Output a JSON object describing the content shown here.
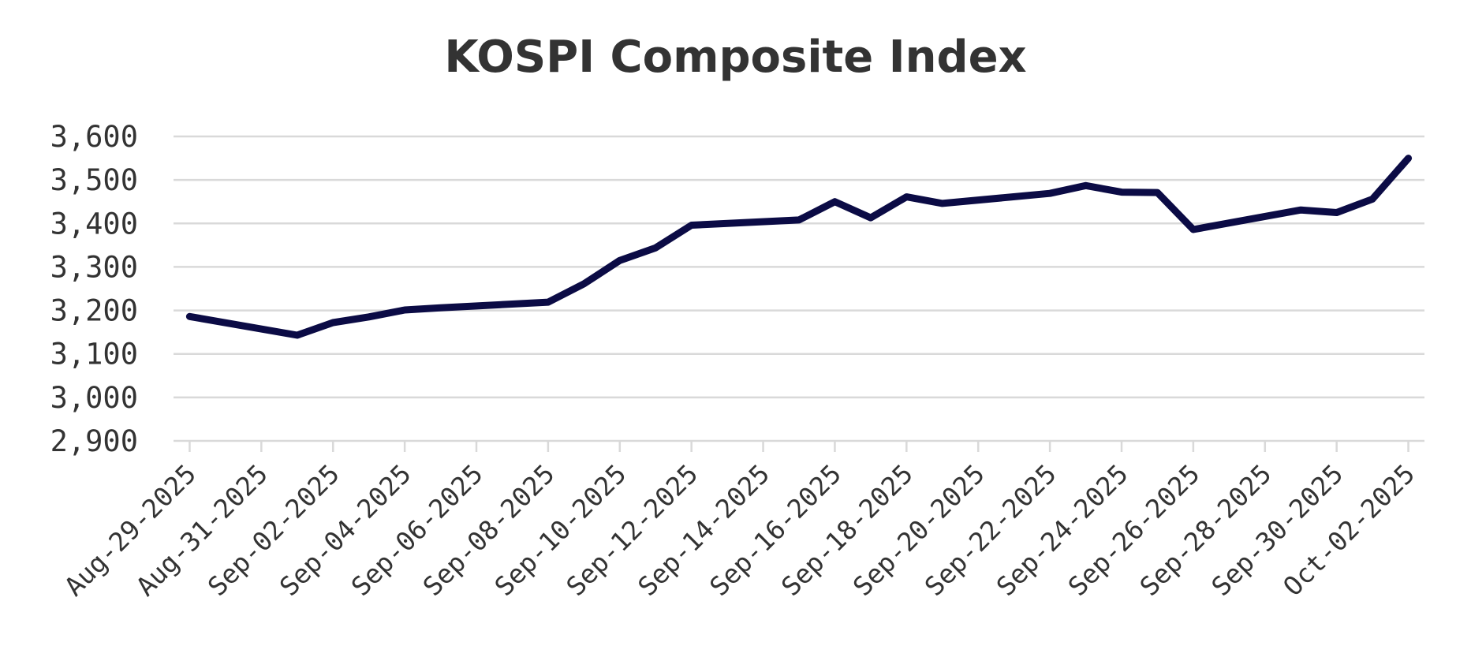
{
  "chart_data": {
    "type": "line",
    "title": "KOSPI Composite Index",
    "xlabel": "",
    "ylabel": "",
    "x_axis": {
      "type": "date",
      "range": [
        "2025-08-29",
        "2025-10-02"
      ],
      "tick_labels": [
        "Aug-29-2025",
        "Aug-31-2025",
        "Sep-02-2025",
        "Sep-04-2025",
        "Sep-06-2025",
        "Sep-08-2025",
        "Sep-10-2025",
        "Sep-12-2025",
        "Sep-14-2025",
        "Sep-16-2025",
        "Sep-18-2025",
        "Sep-20-2025",
        "Sep-22-2025",
        "Sep-24-2025",
        "Sep-26-2025",
        "Sep-28-2025",
        "Sep-30-2025",
        "Oct-02-2025"
      ],
      "tick_dates": [
        "2025-08-29",
        "2025-08-31",
        "2025-09-02",
        "2025-09-04",
        "2025-09-06",
        "2025-09-08",
        "2025-09-10",
        "2025-09-12",
        "2025-09-14",
        "2025-09-16",
        "2025-09-18",
        "2025-09-20",
        "2025-09-22",
        "2025-09-24",
        "2025-09-26",
        "2025-09-28",
        "2025-09-30",
        "2025-10-02"
      ]
    },
    "y_axis": {
      "ylim": [
        2900,
        3600
      ],
      "ticks": [
        2900,
        3000,
        3100,
        3200,
        3300,
        3400,
        3500,
        3600
      ],
      "tick_labels": [
        "2,900",
        "3,000",
        "3,100",
        "3,200",
        "3,300",
        "3,400",
        "3,500",
        "3,600"
      ]
    },
    "grid": true,
    "legend": "none",
    "series": [
      {
        "color": "#0b0b45",
        "x": [
          "2025-08-29",
          "2025-09-01",
          "2025-09-02",
          "2025-09-03",
          "2025-09-04",
          "2025-09-05",
          "2025-09-08",
          "2025-09-09",
          "2025-09-10",
          "2025-09-11",
          "2025-09-12",
          "2025-09-15",
          "2025-09-16",
          "2025-09-17",
          "2025-09-18",
          "2025-09-19",
          "2025-09-22",
          "2025-09-23",
          "2025-09-24",
          "2025-09-25",
          "2025-09-26",
          "2025-09-29",
          "2025-09-30",
          "2025-10-01",
          "2025-10-02"
        ],
        "y": [
          3186,
          3143,
          3172,
          3185,
          3201,
          3206,
          3219,
          3261,
          3315,
          3344,
          3396,
          3408,
          3450,
          3413,
          3461,
          3446,
          3469,
          3487,
          3472,
          3471,
          3386,
          3431,
          3425,
          3456,
          3550
        ]
      }
    ]
  }
}
